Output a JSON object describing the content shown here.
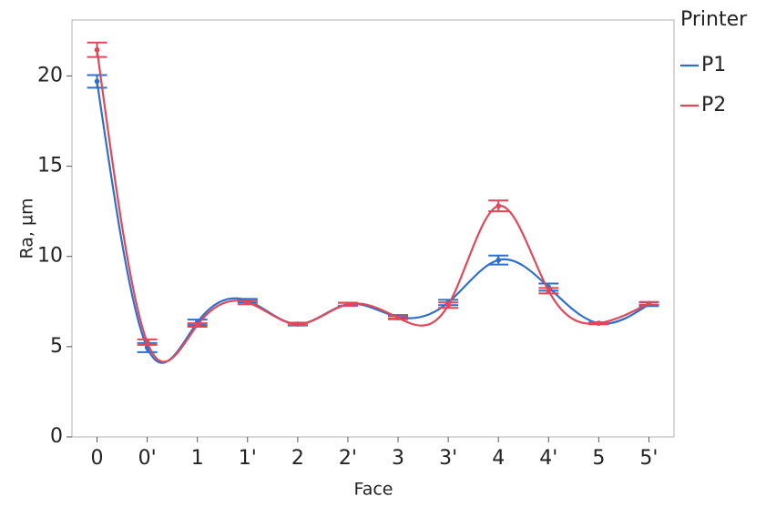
{
  "chart_data": {
    "type": "line",
    "x_label": "Face",
    "y_label": "Ra, µm",
    "legend_title": "Printer",
    "categories": [
      "0",
      "0'",
      "1",
      "1'",
      "2",
      "2'",
      "3",
      "3'",
      "4",
      "4'",
      "5",
      "5'"
    ],
    "series": [
      {
        "name": "P1",
        "color": "#2f6fc9",
        "values": [
          19.7,
          4.95,
          6.35,
          7.55,
          6.25,
          7.35,
          6.65,
          7.45,
          9.8,
          8.3,
          6.3,
          7.35
        ],
        "errors": [
          0.35,
          0.25,
          0.15,
          0.1,
          0.08,
          0.08,
          0.1,
          0.15,
          0.25,
          0.2,
          0.05,
          0.1
        ]
      },
      {
        "name": "P2",
        "color": "#e0485a",
        "values": [
          21.45,
          5.25,
          6.2,
          7.45,
          6.25,
          7.35,
          6.6,
          7.3,
          12.8,
          8.1,
          6.3,
          7.4
        ],
        "errors": [
          0.4,
          0.15,
          0.1,
          0.1,
          0.05,
          0.08,
          0.08,
          0.15,
          0.3,
          0.15,
          0.05,
          0.08
        ]
      }
    ],
    "ylim": [
      0,
      23.1
    ],
    "yticks": [
      0,
      5,
      10,
      15,
      20
    ]
  }
}
